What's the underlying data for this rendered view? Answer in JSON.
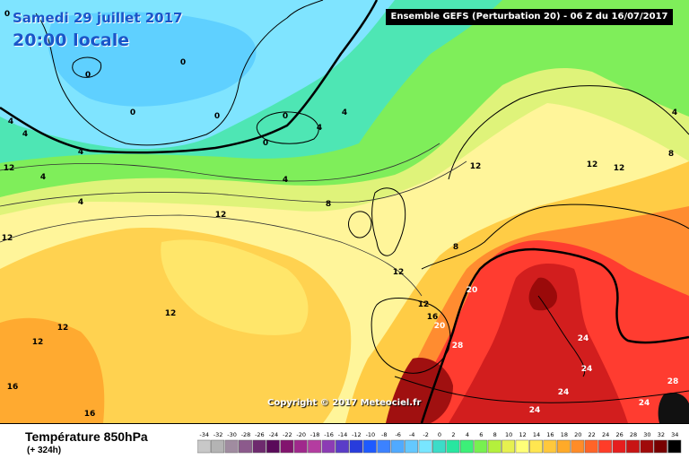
{
  "header": {
    "date": "Samedi 29 juillet 2017",
    "local_time": "20:00 locale",
    "run_info": "Ensemble GEFS  (Perturbation 20)  -  06 Z du 16/07/2017"
  },
  "map": {
    "copyright": "Copyright © 2017 Meteociel.fr",
    "contour_labels": [
      {
        "text": "0"
      },
      {
        "text": "0"
      },
      {
        "text": "0"
      },
      {
        "text": "0"
      },
      {
        "text": "0"
      },
      {
        "text": "0"
      },
      {
        "text": "0"
      },
      {
        "text": "4"
      },
      {
        "text": "4"
      },
      {
        "text": "4"
      },
      {
        "text": "4"
      },
      {
        "text": "4"
      },
      {
        "text": "4"
      },
      {
        "text": "4"
      },
      {
        "text": "4"
      },
      {
        "text": "4"
      },
      {
        "text": "8"
      },
      {
        "text": "8"
      },
      {
        "text": "8"
      },
      {
        "text": "12"
      },
      {
        "text": "12"
      },
      {
        "text": "12"
      },
      {
        "text": "12"
      },
      {
        "text": "12"
      },
      {
        "text": "12"
      },
      {
        "text": "12"
      },
      {
        "text": "12"
      },
      {
        "text": "12"
      },
      {
        "text": "12"
      },
      {
        "text": "12"
      },
      {
        "text": "16"
      },
      {
        "text": "16"
      },
      {
        "text": "16"
      },
      {
        "text": "20"
      },
      {
        "text": "20"
      },
      {
        "text": "24"
      },
      {
        "text": "24"
      },
      {
        "text": "24"
      },
      {
        "text": "24"
      },
      {
        "text": "24"
      },
      {
        "text": "28"
      },
      {
        "text": "28"
      }
    ]
  },
  "footer": {
    "title": "Température 850hPa",
    "lead_time": "(+ 324h)"
  },
  "color_scale": [
    {
      "label": "-34",
      "color": "#c8c8c8"
    },
    {
      "label": "-32",
      "color": "#b4b4b4"
    },
    {
      "label": "-30",
      "color": "#a08ca0"
    },
    {
      "label": "-28",
      "color": "#8c5a8c"
    },
    {
      "label": "-26",
      "color": "#6e2a6e"
    },
    {
      "label": "-24",
      "color": "#5a0a5a"
    },
    {
      "label": "-22",
      "color": "#82146e"
    },
    {
      "label": "-20",
      "color": "#a0288c"
    },
    {
      "label": "-18",
      "color": "#b43ca0"
    },
    {
      "label": "-16",
      "color": "#8c3cb4"
    },
    {
      "label": "-14",
      "color": "#5a3cc8"
    },
    {
      "label": "-12",
      "color": "#283cdc"
    },
    {
      "label": "-10",
      "color": "#1e5aff"
    },
    {
      "label": "-8",
      "color": "#3c82ff"
    },
    {
      "label": "-6",
      "color": "#50aaff"
    },
    {
      "label": "-4",
      "color": "#64c8ff"
    },
    {
      "label": "-2",
      "color": "#78e6ff"
    },
    {
      "label": "0",
      "color": "#3cdcc8"
    },
    {
      "label": "2",
      "color": "#28e6a0"
    },
    {
      "label": "4",
      "color": "#3cf078"
    },
    {
      "label": "6",
      "color": "#78f050"
    },
    {
      "label": "8",
      "color": "#b4f03c"
    },
    {
      "label": "10",
      "color": "#e6f050"
    },
    {
      "label": "12",
      "color": "#ffff78"
    },
    {
      "label": "14",
      "color": "#ffe650"
    },
    {
      "label": "16",
      "color": "#ffc83c"
    },
    {
      "label": "18",
      "color": "#ffaa28"
    },
    {
      "label": "20",
      "color": "#ff8c28"
    },
    {
      "label": "22",
      "color": "#ff6428"
    },
    {
      "label": "24",
      "color": "#ff3c28"
    },
    {
      "label": "26",
      "color": "#e61e1e"
    },
    {
      "label": "28",
      "color": "#c81414"
    },
    {
      "label": "30",
      "color": "#a00a0a"
    },
    {
      "label": "32",
      "color": "#780000"
    },
    {
      "label": "34",
      "color": "#000000"
    }
  ]
}
